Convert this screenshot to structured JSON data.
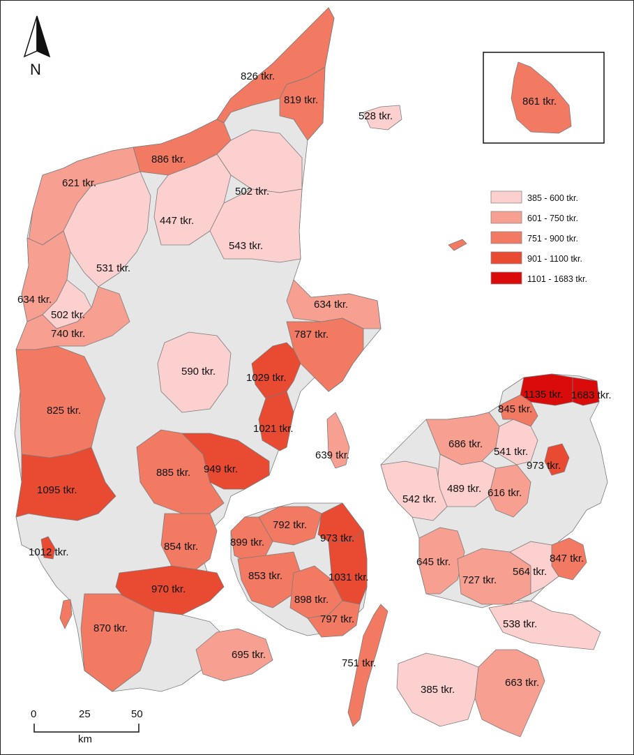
{
  "colors": {
    "class1": "#fbd0cf",
    "class2": "#f7a091",
    "class3": "#f27a63",
    "class4": "#e84a32",
    "class5": "#d90b0b",
    "nodata": "#e6e6e6",
    "sea": "#ffffff",
    "border": "#7a7a7a"
  },
  "north_arrow": {
    "label": "N",
    "icon": "north-arrow-icon"
  },
  "inset": {
    "label": "861 tkr.",
    "class": 3
  },
  "legend": [
    {
      "label": "385 - 600 tkr.",
      "class": 1
    },
    {
      "label": "601 - 750 tkr.",
      "class": 2
    },
    {
      "label": "751 - 900 tkr.",
      "class": 3
    },
    {
      "label": "901 - 1100 tkr.",
      "class": 4
    },
    {
      "label": "1101 - 1683 tkr.",
      "class": 5
    }
  ],
  "scale_bar": {
    "ticks": [
      "0",
      "25",
      "50"
    ],
    "unit": "km"
  },
  "regions": [
    {
      "label": "826 tkr.",
      "class": 3
    },
    {
      "label": "819 tkr.",
      "class": 3
    },
    {
      "label": "528 tkr.",
      "class": 1
    },
    {
      "label": "886 tkr.",
      "class": 3
    },
    {
      "label": "621 tkr.",
      "class": 2
    },
    {
      "label": "502 tkr.",
      "class": 1
    },
    {
      "label": "447 tkr.",
      "class": 1
    },
    {
      "label": "543 tkr.",
      "class": 1
    },
    {
      "label": "531 tkr.",
      "class": 1
    },
    {
      "label": "634 tkr.",
      "class": 2
    },
    {
      "label": "502 tkr.",
      "class": 1
    },
    {
      "label": "740 tkr.",
      "class": 2
    },
    {
      "label": "634 tkr.",
      "class": 2
    },
    {
      "label": "787 tkr.",
      "class": 3
    },
    {
      "label": "590 tkr.",
      "class": 1
    },
    {
      "label": "1029 tkr.",
      "class": 4
    },
    {
      "label": "825 tkr.",
      "class": 3
    },
    {
      "label": "1021 tkr.",
      "class": 4
    },
    {
      "label": "639 tkr.",
      "class": 2
    },
    {
      "label": "1135 tkr.",
      "class": 5
    },
    {
      "label": "1683 tkr.",
      "class": 5
    },
    {
      "label": "845 tkr.",
      "class": 3
    },
    {
      "label": "686 tkr.",
      "class": 2
    },
    {
      "label": "541 tkr.",
      "class": 1
    },
    {
      "label": "973 tkr.",
      "class": 4
    },
    {
      "label": "885 tkr.",
      "class": 3
    },
    {
      "label": "949 tkr.",
      "class": 4
    },
    {
      "label": "1095 tkr.",
      "class": 4
    },
    {
      "label": "489 tkr.",
      "class": 1
    },
    {
      "label": "616 tkr.",
      "class": 2
    },
    {
      "label": "542 tkr.",
      "class": 1
    },
    {
      "label": "792 tkr.",
      "class": 3
    },
    {
      "label": "973 tkr.",
      "class": 4
    },
    {
      "label": "899 tkr.",
      "class": 3
    },
    {
      "label": "854 tkr.",
      "class": 3
    },
    {
      "label": "1012 tkr.",
      "class": 4
    },
    {
      "label": "645 tkr.",
      "class": 2
    },
    {
      "label": "847 tkr.",
      "class": 3
    },
    {
      "label": "727 tkr.",
      "class": 2
    },
    {
      "label": "564 tkr.",
      "class": 1
    },
    {
      "label": "853 tkr.",
      "class": 3
    },
    {
      "label": "1031 tkr.",
      "class": 4
    },
    {
      "label": "970 tkr.",
      "class": 4
    },
    {
      "label": "898 tkr.",
      "class": 3
    },
    {
      "label": "797 tkr.",
      "class": 3
    },
    {
      "label": "870 tkr.",
      "class": 3
    },
    {
      "label": "538 tkr.",
      "class": 1
    },
    {
      "label": "695 tkr.",
      "class": 2
    },
    {
      "label": "751 tkr.",
      "class": 3
    },
    {
      "label": "385 tkr.",
      "class": 1
    },
    {
      "label": "663 tkr.",
      "class": 2
    }
  ]
}
